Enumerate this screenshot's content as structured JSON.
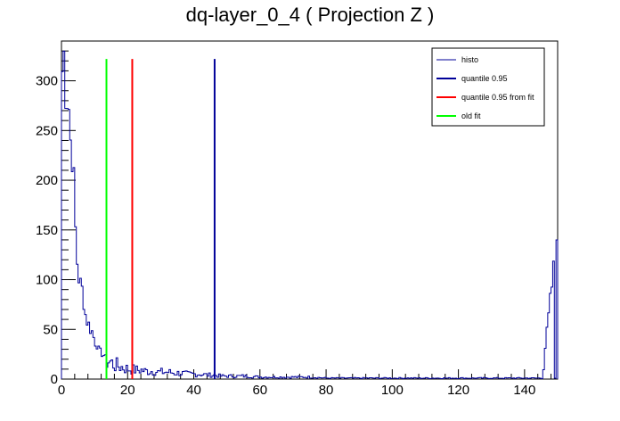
{
  "chart_data": {
    "type": "histogram",
    "title": "dq-layer_0_4 ( Projection Z )",
    "xlim": [
      0,
      150
    ],
    "ylim": [
      0,
      340
    ],
    "x_ticks": [
      0,
      20,
      40,
      60,
      80,
      100,
      120,
      140
    ],
    "y_ticks": [
      0,
      50,
      100,
      150,
      200,
      250,
      300
    ],
    "grid": false,
    "legend_position": "top-right",
    "bin_width": 0.5,
    "series": [
      {
        "name": "histo",
        "color": "#000099",
        "style": "step",
        "points": [
          [
            0.0,
            310
          ],
          [
            0.5,
            325
          ],
          [
            1.0,
            300
          ],
          [
            1.5,
            290
          ],
          [
            2.0,
            275
          ],
          [
            2.5,
            240
          ],
          [
            3.0,
            232
          ],
          [
            3.5,
            195
          ],
          [
            4.0,
            150
          ],
          [
            4.5,
            118
          ],
          [
            5.0,
            102
          ],
          [
            5.5,
            95
          ],
          [
            6.0,
            90
          ],
          [
            6.5,
            78
          ],
          [
            7.0,
            65
          ],
          [
            7.5,
            58
          ],
          [
            8.0,
            55
          ],
          [
            8.5,
            50
          ],
          [
            9.0,
            48
          ],
          [
            9.5,
            42
          ],
          [
            10.0,
            36
          ],
          [
            10.5,
            34
          ],
          [
            11.0,
            30
          ],
          [
            11.5,
            28
          ],
          [
            12.0,
            25
          ],
          [
            12.5,
            24
          ],
          [
            13.0,
            22
          ],
          [
            13.5,
            19
          ],
          [
            14.0,
            18
          ],
          [
            14.5,
            17
          ],
          [
            15.0,
            16
          ],
          [
            15.5,
            15
          ],
          [
            16.0,
            14
          ],
          [
            17.0,
            13
          ],
          [
            18.0,
            12
          ],
          [
            19.0,
            11
          ],
          [
            20.0,
            10
          ],
          [
            21.0,
            10
          ],
          [
            22.0,
            9
          ],
          [
            23.0,
            9
          ],
          [
            24.0,
            9
          ],
          [
            25.0,
            8
          ],
          [
            26.0,
            8
          ],
          [
            27.0,
            8
          ],
          [
            28.0,
            8
          ],
          [
            29.0,
            7
          ],
          [
            30.0,
            7
          ],
          [
            32.0,
            7
          ],
          [
            34.0,
            6
          ],
          [
            36.0,
            6
          ],
          [
            38.0,
            5
          ],
          [
            40.0,
            5
          ],
          [
            42.0,
            5
          ],
          [
            44.0,
            4
          ],
          [
            46.0,
            4
          ],
          [
            48.0,
            3
          ],
          [
            50.0,
            3
          ],
          [
            55.0,
            3
          ],
          [
            60.0,
            2
          ],
          [
            65.0,
            2
          ],
          [
            70.0,
            2
          ],
          [
            75.0,
            2
          ],
          [
            80.0,
            1
          ],
          [
            85.0,
            1
          ],
          [
            90.0,
            1
          ],
          [
            95.0,
            1
          ],
          [
            100.0,
            1
          ],
          [
            105.0,
            1
          ],
          [
            110.0,
            1
          ],
          [
            115.0,
            1
          ],
          [
            120.0,
            1
          ],
          [
            125.0,
            1
          ],
          [
            130.0,
            1
          ],
          [
            135.0,
            1
          ],
          [
            140.0,
            1
          ],
          [
            145.0,
            1
          ],
          [
            149.5,
            140
          ]
        ]
      }
    ],
    "vertical_lines": [
      {
        "name": "quantile 0.95",
        "x": 46.3,
        "y_top": 322,
        "color": "#000099"
      },
      {
        "name": "quantile 0.95 from fit",
        "x": 21.4,
        "y_top": 322,
        "color": "#ff0000"
      },
      {
        "name": "old fit",
        "x": 13.6,
        "y_top": 322,
        "color": "#00ff00"
      }
    ],
    "legend": [
      {
        "label": "histo",
        "color": "#000099",
        "thin": true
      },
      {
        "label": "quantile 0.95",
        "color": "#000099",
        "thin": false
      },
      {
        "label": "quantile 0.95 from fit",
        "color": "#ff0000",
        "thin": false
      },
      {
        "label": "old fit",
        "color": "#00ff00",
        "thin": false
      }
    ]
  }
}
